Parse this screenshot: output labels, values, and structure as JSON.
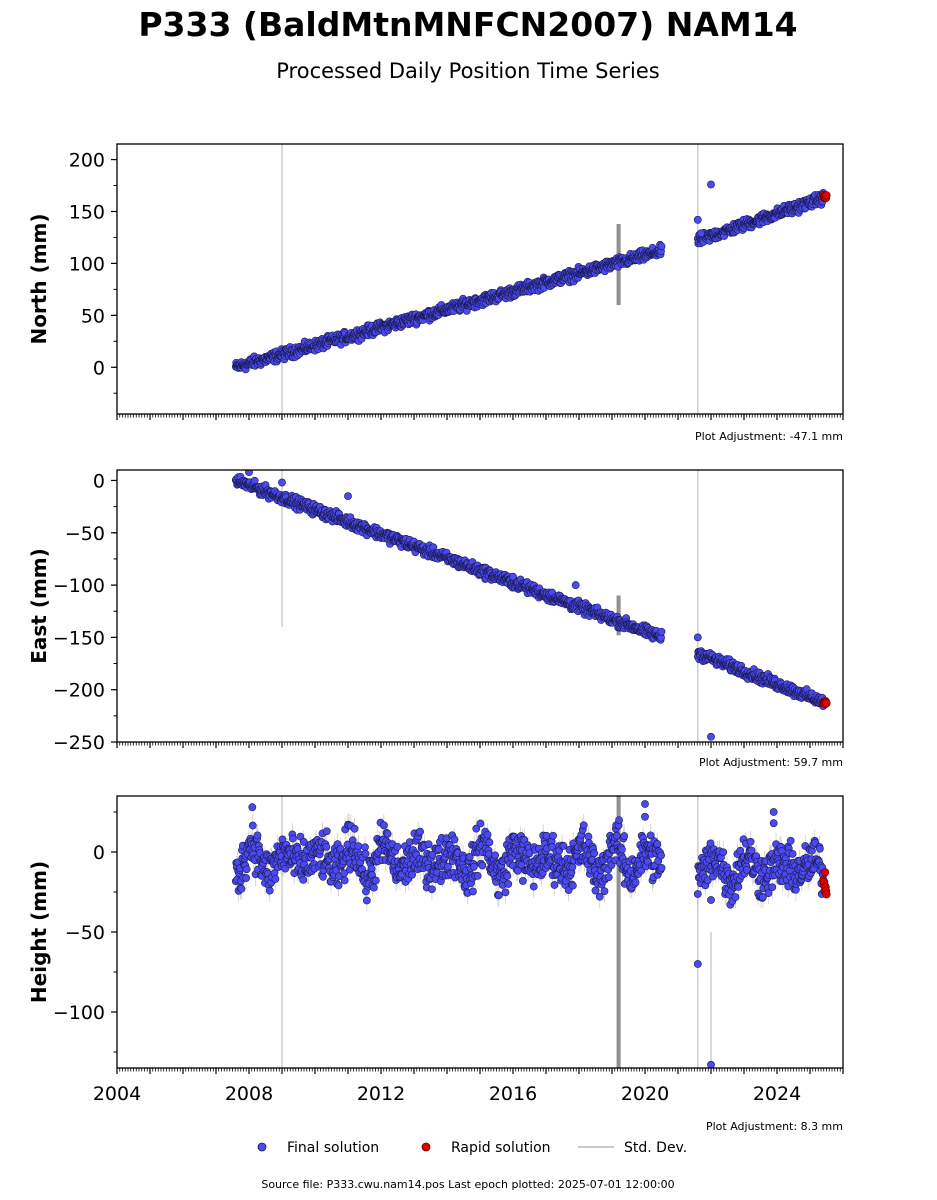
{
  "title": "P333 (BaldMtnMNFCN2007) NAM14",
  "subtitle": "Processed Daily Position Time Series",
  "legend": {
    "final": "Final solution",
    "rapid": "Rapid solution",
    "std": "Std. Dev."
  },
  "source_line": "Source file: P333.cwu.nam14.pos  Last epoch plotted: 2025-07-01 12:00:00",
  "colors": {
    "final": "#4a4af0",
    "final_edge": "#1a1a50",
    "rapid": "#e00000",
    "std": "#b0b0b0",
    "std_dark": "#555555"
  },
  "chart_data": [
    {
      "type": "scatter",
      "name": "north",
      "ylabel": "North (mm)",
      "adjustment": "Plot Adjustment: -47.1 mm",
      "xlim": [
        2004,
        2026
      ],
      "ylim": [
        -45,
        215
      ],
      "yticks": [
        0,
        50,
        100,
        150,
        200
      ],
      "xticks": [],
      "trend": [
        {
          "x0": 2007.6,
          "x1": 2020.5,
          "y0": 0,
          "y1": 112,
          "scatter": 2.5
        },
        {
          "x0": 2021.6,
          "x1": 2025.4,
          "y0": 122,
          "y1": 163,
          "scatter": 2.5
        }
      ],
      "outliers": [
        [
          2021.6,
          142
        ],
        [
          2022.0,
          176
        ],
        [
          2021.7,
          129
        ]
      ],
      "rapid": {
        "x0": 2025.4,
        "x1": 2025.5,
        "y": 164
      },
      "std_lines": [
        [
          2009.0,
          -45,
          215
        ],
        [
          2021.6,
          -45,
          215
        ]
      ],
      "std_spike": [
        2019.2,
        60,
        138
      ]
    },
    {
      "type": "scatter",
      "name": "east",
      "ylabel": "East (mm)",
      "adjustment": "Plot Adjustment: 59.7 mm",
      "xlim": [
        2004,
        2026
      ],
      "ylim": [
        -250,
        10
      ],
      "yticks": [
        0,
        -50,
        -100,
        -150,
        -200,
        -250
      ],
      "yticklabels": [
        "0",
        "−50",
        "−100",
        "−150",
        "−200",
        "−250"
      ],
      "xticks": [],
      "trend": [
        {
          "x0": 2007.6,
          "x1": 2020.5,
          "y0": 0,
          "y1": -150,
          "scatter": 2.5
        },
        {
          "x0": 2021.6,
          "x1": 2025.4,
          "y0": -165,
          "y1": -212,
          "scatter": 2.5
        }
      ],
      "outliers": [
        [
          2008.0,
          8
        ],
        [
          2009.0,
          -2
        ],
        [
          2011.0,
          -15
        ],
        [
          2016.0,
          -92
        ],
        [
          2017.9,
          -100
        ],
        [
          2021.6,
          -150
        ],
        [
          2022.0,
          -245
        ]
      ],
      "rapid": {
        "x0": 2025.4,
        "x1": 2025.5,
        "y": -213
      },
      "std_lines": [
        [
          2009.0,
          -140,
          10
        ],
        [
          2021.6,
          -250,
          10
        ]
      ],
      "std_spike": [
        2019.2,
        -148,
        -110
      ]
    },
    {
      "type": "scatter",
      "name": "height",
      "ylabel": "Height (mm)",
      "adjustment": "Plot Adjustment: 8.3 mm",
      "xlim": [
        2004,
        2026
      ],
      "ylim": [
        -135,
        35
      ],
      "yticks": [
        0,
        -50,
        -100
      ],
      "yticklabels": [
        "0",
        "−50",
        "−100"
      ],
      "xticks": [
        2004,
        2008,
        2012,
        2016,
        2020,
        2024
      ],
      "trend": [
        {
          "x0": 2007.6,
          "x1": 2020.5,
          "y0": -5,
          "y1": -5,
          "scatter": 7,
          "seasonal": 11
        },
        {
          "x0": 2021.6,
          "x1": 2025.4,
          "y0": -10,
          "y1": -10,
          "scatter": 7,
          "seasonal": 9
        }
      ],
      "outliers": [
        [
          2008.1,
          28
        ],
        [
          2020.0,
          30
        ],
        [
          2020.0,
          22
        ],
        [
          2021.6,
          -70
        ],
        [
          2022.0,
          -30
        ],
        [
          2022.0,
          -133
        ],
        [
          2023.9,
          25
        ],
        [
          2023.9,
          18
        ]
      ],
      "rapid": {
        "x0": 2025.4,
        "x1": 2025.5,
        "y": -20
      },
      "std_lines": [
        [
          2009.0,
          -135,
          35
        ],
        [
          2021.6,
          -135,
          35
        ],
        [
          2022.0,
          -135,
          -50
        ]
      ],
      "std_spike": [
        2019.2,
        -135,
        35
      ]
    }
  ]
}
